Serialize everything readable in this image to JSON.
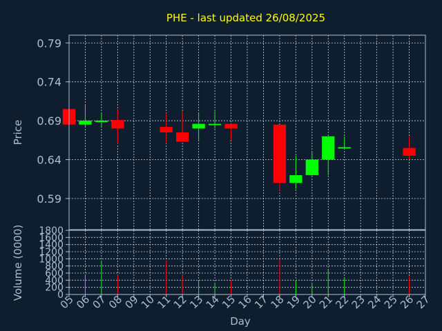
{
  "colors": {
    "background": "#0f1e2e",
    "frame": "#a9bfd3",
    "grid": "#c9d6e2",
    "text": "#a9bfd3",
    "title": "#ffff00",
    "up": "#00ff00",
    "down": "#ff0000"
  },
  "chart_data": [
    {
      "type": "candlestick",
      "title": "PHE - last updated 26/08/2025",
      "ylabel": "Price",
      "ylim": [
        0.55,
        0.8
      ],
      "yticks": [
        0.59,
        0.64,
        0.69,
        0.74,
        0.79
      ],
      "ytick_labels": [
        "0.59",
        "0.64",
        "0.69",
        "0.74",
        "0.79"
      ],
      "grid": true,
      "candles": [
        {
          "day": "05",
          "open": 0.705,
          "high": 0.705,
          "low": 0.684,
          "close": 0.685
        },
        {
          "day": "06",
          "open": 0.685,
          "high": 0.71,
          "low": 0.683,
          "close": 0.69
        },
        {
          "day": "07",
          "open": 0.689,
          "high": 0.7,
          "low": 0.682,
          "close": 0.69
        },
        {
          "day": "08",
          "open": 0.691,
          "high": 0.705,
          "low": 0.66,
          "close": 0.68
        },
        {
          "day": "11",
          "open": 0.682,
          "high": 0.7,
          "low": 0.661,
          "close": 0.675
        },
        {
          "day": "12",
          "open": 0.675,
          "high": 0.702,
          "low": 0.663,
          "close": 0.663
        },
        {
          "day": "13",
          "open": 0.68,
          "high": 0.7,
          "low": 0.664,
          "close": 0.686
        },
        {
          "day": "14",
          "open": 0.685,
          "high": 0.702,
          "low": 0.68,
          "close": 0.686
        },
        {
          "day": "15",
          "open": 0.686,
          "high": 0.686,
          "low": 0.665,
          "close": 0.68
        },
        {
          "day": "18",
          "open": 0.685,
          "high": 0.685,
          "low": 0.6,
          "close": 0.61
        },
        {
          "day": "19",
          "open": 0.61,
          "high": 0.645,
          "low": 0.602,
          "close": 0.62
        },
        {
          "day": "20",
          "open": 0.62,
          "high": 0.65,
          "low": 0.62,
          "close": 0.64
        },
        {
          "day": "21",
          "open": 0.64,
          "high": 0.67,
          "low": 0.62,
          "close": 0.67
        },
        {
          "day": "22",
          "open": 0.655,
          "high": 0.67,
          "low": 0.655,
          "close": 0.656
        },
        {
          "day": "26",
          "open": 0.655,
          "high": 0.67,
          "low": 0.64,
          "close": 0.645
        }
      ]
    },
    {
      "type": "bar",
      "ylabel": "Volume (0000)",
      "xlabel": "Day",
      "ylim": [
        0,
        1800
      ],
      "yticks": [
        0,
        200,
        400,
        600,
        800,
        1000,
        1200,
        1400,
        1600,
        1800
      ],
      "ytick_labels": [
        "0",
        "200",
        "400",
        "600",
        "800",
        "1000",
        "1200",
        "1400",
        "1600",
        "1800"
      ],
      "categories": [
        "05",
        "06",
        "07",
        "08",
        "09",
        "10",
        "11",
        "12",
        "13",
        "14",
        "15",
        "16",
        "17",
        "18",
        "19",
        "20",
        "21",
        "22",
        "23",
        "24",
        "25",
        "26",
        "27"
      ],
      "grid": true,
      "bars": [
        {
          "day": "06",
          "value": 550,
          "color": "up"
        },
        {
          "day": "07",
          "value": 950,
          "color": "up"
        },
        {
          "day": "08",
          "value": 550,
          "color": "down"
        },
        {
          "day": "11",
          "value": 950,
          "color": "down"
        },
        {
          "day": "12",
          "value": 550,
          "color": "down"
        },
        {
          "day": "13",
          "value": 400,
          "color": "up"
        },
        {
          "day": "14",
          "value": 300,
          "color": "up"
        },
        {
          "day": "15",
          "value": 400,
          "color": "down"
        },
        {
          "day": "18",
          "value": 1000,
          "color": "down"
        },
        {
          "day": "19",
          "value": 400,
          "color": "up"
        },
        {
          "day": "20",
          "value": 300,
          "color": "up"
        },
        {
          "day": "21",
          "value": 700,
          "color": "up"
        },
        {
          "day": "22",
          "value": 450,
          "color": "up"
        },
        {
          "day": "26",
          "value": 500,
          "color": "down"
        }
      ]
    }
  ]
}
